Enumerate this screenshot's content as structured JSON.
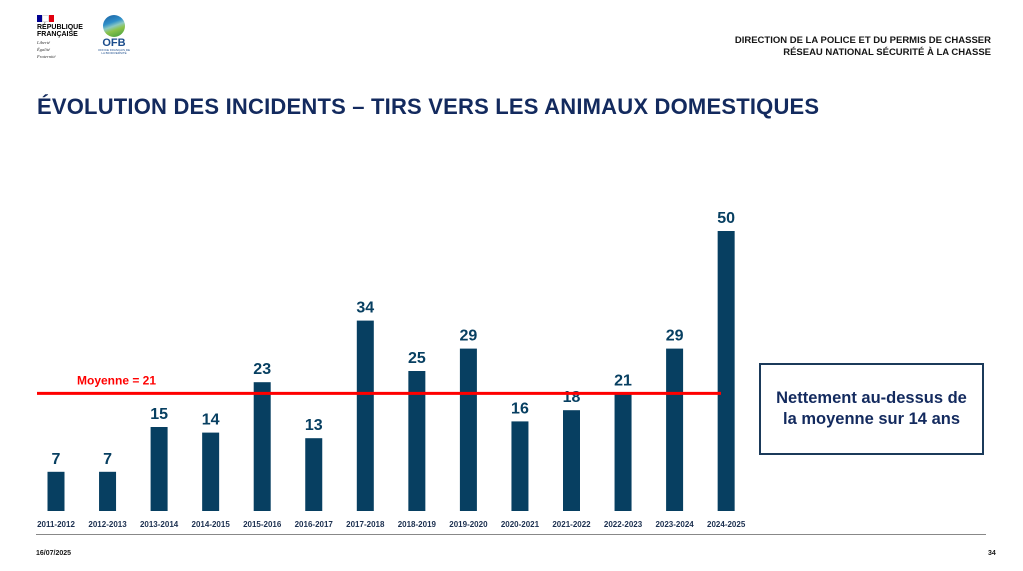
{
  "header": {
    "republic_logo": {
      "name_line1": "RÉPUBLIQUE",
      "name_line2": "FRANÇAISE",
      "motto": [
        "Liberté",
        "Égalité",
        "Fraternité"
      ],
      "flag_colors": [
        "#000091",
        "#ffffff",
        "#e1000f"
      ]
    },
    "ofb_logo": {
      "acronym": "OFB",
      "subtitle": "OFFICE FRANÇAIS DE LA BIODIVERSITÉ"
    },
    "right_line1": "DIRECTION DE LA POLICE ET DU PERMIS DE CHASSER",
    "right_line2": "RÉSEAU NATIONAL SÉCURITÉ À LA CHASSE"
  },
  "title": "ÉVOLUTION DES INCIDENTS – TIRS VERS LES ANIMAUX DOMESTIQUES",
  "callout": "Nettement au-dessus de la moyenne sur 14 ans",
  "footer": {
    "date": "16/07/2025",
    "page": "34"
  },
  "colors": {
    "bar": "#073f61",
    "mean_line": "#ff0000",
    "title": "#132a5e",
    "axis": "#888888"
  },
  "chart_data": {
    "type": "bar",
    "title": "ÉVOLUTION DES INCIDENTS – TIRS VERS LES ANIMAUX DOMESTIQUES",
    "xlabel": "",
    "ylabel": "",
    "categories": [
      "2011-2012",
      "2012-2013",
      "2013-2014",
      "2014-2015",
      "2015-2016",
      "2016-2017",
      "2017-2018",
      "2018-2019",
      "2019-2020",
      "2020-2021",
      "2021-2022",
      "2022-2023",
      "2023-2024",
      "2024-2025"
    ],
    "values": [
      7,
      7,
      15,
      14,
      23,
      13,
      34,
      25,
      29,
      16,
      18,
      21,
      29,
      50
    ],
    "ylim": [
      0,
      50
    ],
    "grid": false,
    "data_labels": true,
    "reference_line": {
      "label": "Moyenne = 21",
      "value": 21
    }
  }
}
